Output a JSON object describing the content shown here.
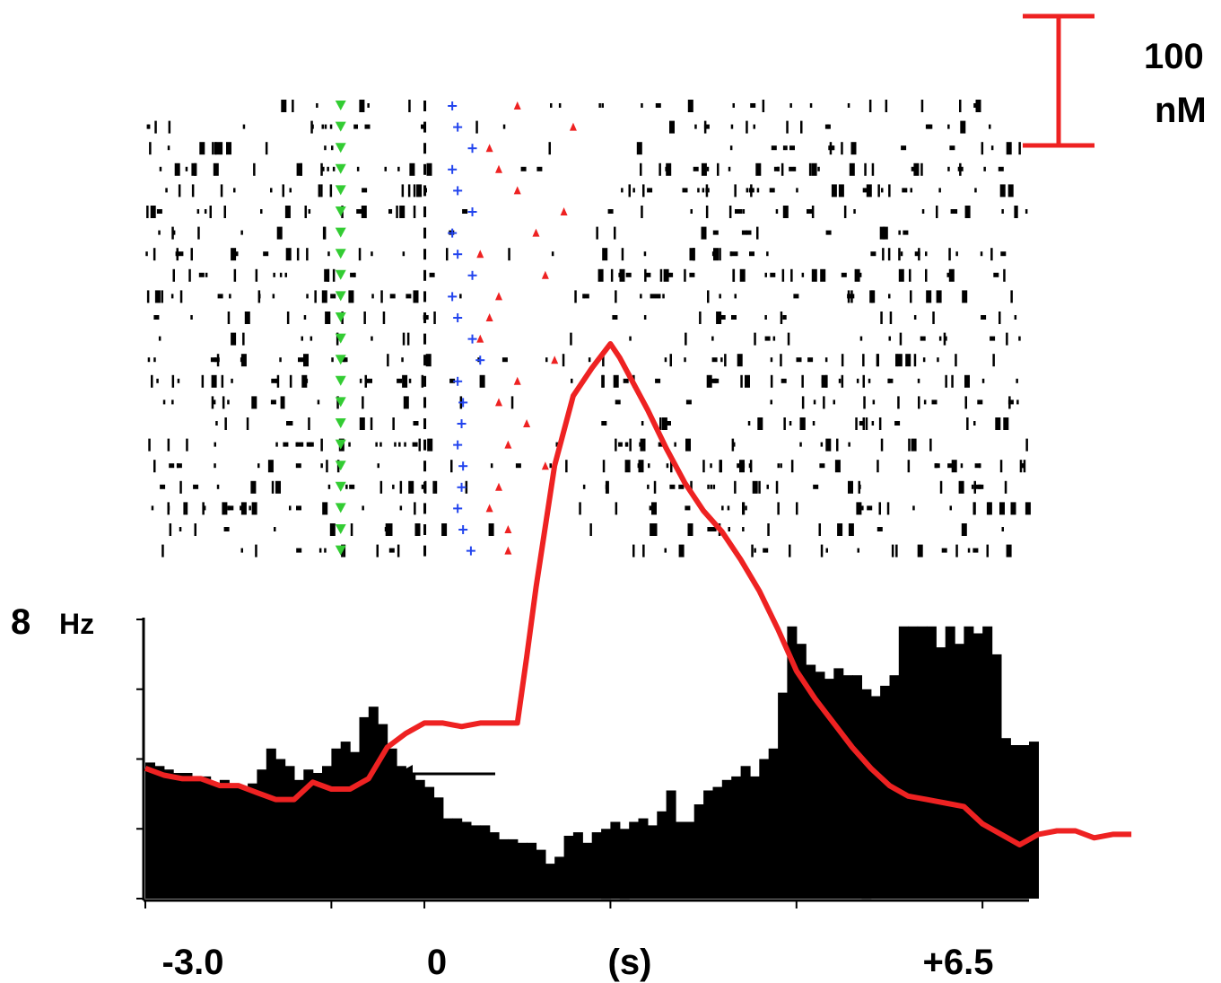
{
  "chart_data": {
    "type": "bar",
    "description_free": true,
    "y_axis": {
      "max_label": "8",
      "unit": "Hz",
      "ylim": [
        0,
        8
      ],
      "ticks": [
        0,
        2,
        4,
        6,
        8
      ]
    },
    "x_axis": {
      "tick_labels": [
        "-3.0",
        "0",
        "(s)",
        "+6.5"
      ],
      "tick_values": [
        -3.0,
        0,
        1.5,
        6.5
      ],
      "xlim": [
        -3.0,
        6.5
      ],
      "minor_ticks": [
        -3.0,
        -1.0,
        0,
        2.0,
        4.0,
        6.0
      ]
    },
    "scale_bar": {
      "label_top": "100",
      "label_bottom": "nM",
      "color": "#ee2222"
    },
    "histogram": {
      "bin_width": 0.1,
      "start": -3.0,
      "values": [
        3.9,
        3.8,
        3.7,
        3.6,
        3.6,
        3.5,
        3.5,
        3.3,
        3.4,
        3.3,
        3.2,
        3.3,
        3.7,
        4.3,
        4.0,
        3.8,
        3.4,
        3.7,
        3.6,
        3.8,
        4.3,
        4.5,
        4.2,
        5.2,
        5.5,
        5.0,
        4.3,
        3.8,
        3.6,
        3.4,
        3.2,
        2.9,
        2.3,
        2.3,
        2.2,
        2.1,
        2.1,
        1.9,
        1.7,
        1.7,
        1.6,
        1.6,
        1.4,
        1.0,
        1.2,
        1.8,
        1.9,
        1.6,
        1.9,
        2.0,
        2.2,
        2.0,
        2.2,
        2.3,
        2.1,
        2.5,
        3.1,
        2.2,
        2.2,
        2.7,
        3.1,
        3.2,
        3.4,
        3.5,
        3.8,
        3.5,
        4.0,
        4.3,
        5.9,
        7.8,
        7.3,
        6.7,
        6.5,
        6.3,
        6.6,
        6.4,
        6.4,
        6.0,
        5.8,
        6.1,
        6.4,
        7.8,
        7.8,
        7.8,
        7.8,
        7.2,
        7.8,
        7.3,
        7.8,
        7.6,
        7.8,
        7.0,
        4.6,
        4.4,
        4.4,
        4.5
      ]
    },
    "calcium_trace": {
      "color": "#ee2222",
      "points": [
        [
          -3.0,
          3.8
        ],
        [
          -2.8,
          3.6
        ],
        [
          -2.6,
          3.5
        ],
        [
          -2.4,
          3.5
        ],
        [
          -2.2,
          3.3
        ],
        [
          -2.0,
          3.3
        ],
        [
          -1.8,
          3.1
        ],
        [
          -1.6,
          2.9
        ],
        [
          -1.4,
          2.9
        ],
        [
          -1.2,
          3.4
        ],
        [
          -1.0,
          3.2
        ],
        [
          -0.8,
          3.2
        ],
        [
          -0.6,
          3.5
        ],
        [
          -0.4,
          4.4
        ],
        [
          -0.2,
          4.8
        ],
        [
          0.0,
          5.1
        ],
        [
          0.2,
          5.1
        ],
        [
          0.4,
          5.0
        ],
        [
          0.6,
          5.1
        ],
        [
          0.8,
          5.1
        ],
        [
          1.0,
          5.1
        ],
        [
          1.1,
          7.0
        ],
        [
          1.2,
          9.0
        ],
        [
          1.4,
          12.5
        ],
        [
          1.6,
          14.5
        ],
        [
          1.8,
          15.3
        ],
        [
          2.0,
          16.0
        ],
        [
          2.1,
          15.6
        ],
        [
          2.2,
          15.1
        ],
        [
          2.4,
          14.1
        ],
        [
          2.6,
          13.0
        ],
        [
          2.8,
          12.0
        ],
        [
          3.0,
          11.2
        ],
        [
          3.2,
          10.6
        ],
        [
          3.4,
          9.8
        ],
        [
          3.6,
          8.9
        ],
        [
          3.8,
          7.8
        ],
        [
          4.0,
          6.6
        ],
        [
          4.2,
          5.8
        ],
        [
          4.4,
          5.1
        ],
        [
          4.6,
          4.4
        ],
        [
          4.8,
          3.8
        ],
        [
          5.0,
          3.3
        ],
        [
          5.2,
          3.0
        ],
        [
          5.4,
          2.9
        ],
        [
          5.6,
          2.8
        ],
        [
          5.8,
          2.7
        ],
        [
          6.0,
          2.2
        ],
        [
          6.2,
          1.9
        ],
        [
          6.4,
          1.6
        ],
        [
          6.6,
          1.9
        ],
        [
          6.8,
          2.0
        ],
        [
          7.0,
          2.0
        ],
        [
          7.2,
          1.8
        ],
        [
          7.4,
          1.9
        ],
        [
          7.6,
          1.9
        ]
      ]
    },
    "raster": {
      "trials": 22,
      "markers": {
        "onset_color": "#33cc33",
        "event_a_color": "#2244ee",
        "event_b_color": "#ee2222",
        "onset_time": -0.9,
        "alignment_time": 0.0,
        "event_a_times": [
          0.3,
          0.3,
          0.4,
          0.3,
          0.3,
          0.4,
          0.3,
          0.3,
          0.4,
          0.3,
          0.3,
          0.4,
          0.6,
          0.3,
          0.3,
          0.4,
          0.3,
          0.3,
          0.4,
          0.3,
          0.3,
          0.5
        ],
        "event_b_times": [
          1.0,
          1.6,
          0.7,
          0.8,
          1.0,
          1.5,
          1.2,
          0.6,
          1.3,
          0.8,
          0.7,
          0.6,
          1.4,
          1.0,
          0.8,
          1.1,
          0.9,
          1.3,
          0.8,
          0.7,
          0.9,
          0.9
        ]
      }
    },
    "arrow_annotation": {
      "color": "#000000",
      "direction": "left"
    }
  }
}
